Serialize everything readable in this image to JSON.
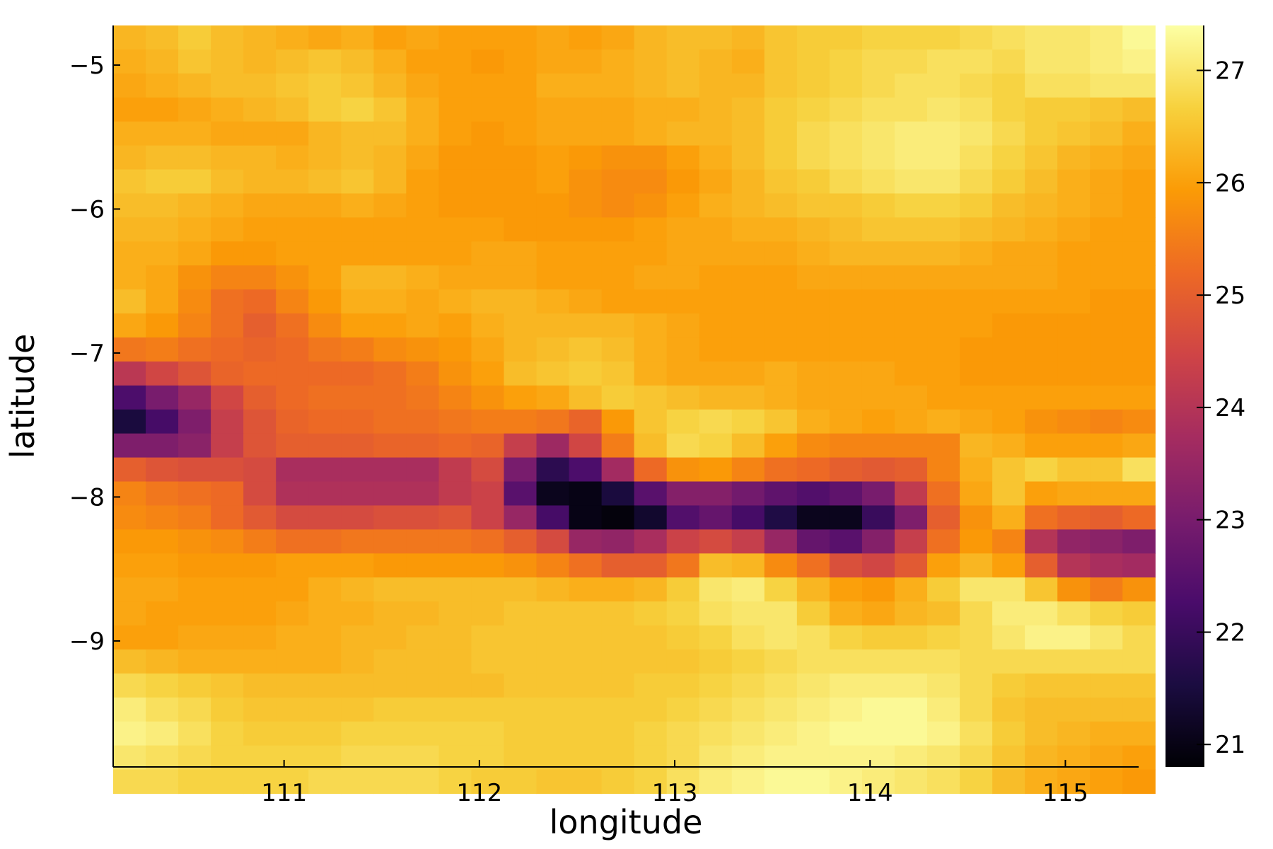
{
  "chart_data": {
    "type": "heatmap",
    "title": "",
    "xlabel": "longitude",
    "ylabel": "latitude",
    "grid": false,
    "legend": "colorbar-right",
    "colormap": "inferno",
    "colormap_stops": [
      "#000004",
      "#1b0c41",
      "#4a0c6b",
      "#781c6d",
      "#a52c60",
      "#cf4446",
      "#ed6925",
      "#fb9b06",
      "#f7d13d",
      "#fcffa4"
    ],
    "xlim": [
      110.125,
      115.375
    ],
    "ylim": [
      -9.875,
      -4.725
    ],
    "x_ticks": [
      111,
      112,
      113,
      114,
      115
    ],
    "x_tick_labels": [
      "111",
      "112",
      "113",
      "114",
      "115"
    ],
    "y_ticks": [
      -5,
      -6,
      -7,
      -8,
      -9
    ],
    "y_tick_labels": [
      "−5",
      "−6",
      "−7",
      "−8",
      "−9"
    ],
    "colorbar": {
      "range": [
        20.8,
        27.4
      ],
      "ticks": [
        21,
        22,
        23,
        24,
        25,
        26,
        27
      ],
      "tick_labels": [
        "21",
        "22",
        "23",
        "24",
        "25",
        "26",
        "27"
      ]
    },
    "x_start": 110.125,
    "x_step": 0.1667,
    "y_start": -4.725,
    "y_step": -0.1667,
    "rows": [
      [
        26.3,
        26.4,
        26.6,
        26.4,
        26.3,
        26.2,
        26.1,
        26.2,
        26.0,
        26.1,
        26.0,
        26.0,
        26.0,
        26.1,
        26.0,
        26.1,
        26.3,
        26.4,
        26.4,
        26.3,
        26.5,
        26.6,
        26.6,
        26.7,
        26.7,
        26.7,
        26.8,
        26.9,
        27.0,
        27.0,
        27.1,
        27.3
      ],
      [
        26.2,
        26.3,
        26.5,
        26.4,
        26.3,
        26.4,
        26.5,
        26.4,
        26.2,
        26.0,
        26.0,
        25.9,
        26.0,
        26.1,
        26.1,
        26.2,
        26.3,
        26.4,
        26.3,
        26.2,
        26.5,
        26.6,
        26.7,
        26.8,
        26.8,
        26.9,
        26.9,
        26.8,
        27.0,
        27.0,
        27.1,
        27.2
      ],
      [
        26.1,
        26.2,
        26.3,
        26.4,
        26.4,
        26.5,
        26.6,
        26.5,
        26.3,
        26.1,
        26.0,
        26.0,
        26.0,
        26.2,
        26.2,
        26.2,
        26.3,
        26.4,
        26.3,
        26.3,
        26.5,
        26.6,
        26.7,
        26.8,
        26.9,
        26.9,
        26.8,
        26.7,
        26.9,
        26.9,
        27.0,
        27.0
      ],
      [
        26.0,
        26.0,
        26.1,
        26.2,
        26.3,
        26.4,
        26.6,
        26.7,
        26.5,
        26.2,
        26.0,
        26.0,
        26.0,
        26.1,
        26.1,
        26.1,
        26.2,
        26.2,
        26.3,
        26.4,
        26.6,
        26.7,
        26.8,
        26.9,
        26.9,
        27.0,
        26.9,
        26.7,
        26.6,
        26.6,
        26.5,
        26.4
      ],
      [
        26.2,
        26.2,
        26.2,
        26.1,
        26.1,
        26.1,
        26.3,
        26.4,
        26.4,
        26.2,
        26.0,
        25.9,
        26.0,
        26.1,
        26.1,
        26.1,
        26.2,
        26.3,
        26.3,
        26.4,
        26.6,
        26.8,
        26.9,
        27.0,
        27.1,
        27.1,
        27.0,
        26.8,
        26.6,
        26.5,
        26.4,
        26.2
      ],
      [
        26.3,
        26.4,
        26.4,
        26.3,
        26.3,
        26.2,
        26.3,
        26.4,
        26.3,
        26.1,
        25.9,
        25.9,
        25.9,
        26.0,
        25.9,
        25.8,
        25.8,
        26.0,
        26.2,
        26.4,
        26.6,
        26.8,
        26.9,
        27.0,
        27.1,
        27.1,
        26.9,
        26.7,
        26.5,
        26.3,
        26.2,
        26.1
      ],
      [
        26.5,
        26.6,
        26.6,
        26.4,
        26.3,
        26.3,
        26.4,
        26.5,
        26.3,
        26.0,
        25.9,
        25.9,
        25.9,
        26.0,
        25.8,
        25.7,
        25.7,
        25.9,
        26.1,
        26.3,
        26.5,
        26.6,
        26.8,
        26.9,
        27.0,
        27.0,
        26.8,
        26.6,
        26.4,
        26.2,
        26.1,
        26.0
      ],
      [
        26.4,
        26.4,
        26.3,
        26.2,
        26.1,
        26.1,
        26.1,
        26.2,
        26.1,
        26.0,
        25.9,
        25.9,
        25.9,
        25.9,
        25.8,
        25.7,
        25.8,
        26.0,
        26.2,
        26.3,
        26.4,
        26.5,
        26.5,
        26.6,
        26.7,
        26.7,
        26.6,
        26.4,
        26.3,
        26.2,
        26.1,
        26.0
      ],
      [
        26.3,
        26.3,
        26.2,
        26.1,
        26.0,
        26.0,
        26.0,
        26.0,
        26.0,
        26.0,
        26.0,
        26.0,
        25.9,
        25.9,
        25.9,
        25.9,
        26.0,
        26.1,
        26.1,
        26.2,
        26.2,
        26.3,
        26.4,
        26.5,
        26.5,
        26.5,
        26.4,
        26.3,
        26.2,
        26.1,
        26.0,
        26.0
      ],
      [
        26.2,
        26.2,
        26.1,
        25.9,
        25.9,
        26.0,
        26.0,
        26.0,
        26.0,
        26.0,
        26.0,
        26.1,
        26.1,
        26.0,
        26.0,
        26.0,
        26.0,
        26.1,
        26.1,
        26.1,
        26.1,
        26.2,
        26.3,
        26.3,
        26.3,
        26.3,
        26.2,
        26.1,
        26.1,
        26.0,
        26.0,
        26.0
      ],
      [
        26.2,
        26.1,
        25.8,
        25.6,
        25.6,
        25.8,
        26.0,
        26.3,
        26.3,
        26.2,
        26.1,
        26.1,
        26.1,
        26.0,
        26.0,
        26.0,
        26.1,
        26.1,
        26.0,
        26.0,
        26.0,
        26.1,
        26.1,
        26.1,
        26.1,
        26.1,
        26.1,
        26.1,
        26.1,
        26.0,
        26.0,
        26.0
      ],
      [
        26.4,
        26.1,
        25.7,
        25.3,
        25.2,
        25.6,
        25.9,
        26.2,
        26.2,
        26.1,
        26.2,
        26.3,
        26.3,
        26.2,
        26.1,
        26.0,
        26.0,
        26.0,
        26.0,
        26.0,
        26.0,
        26.0,
        26.0,
        26.0,
        26.0,
        26.0,
        26.0,
        26.0,
        26.0,
        26.0,
        25.9,
        25.9
      ],
      [
        26.1,
        25.9,
        25.6,
        25.3,
        25.0,
        25.3,
        25.7,
        26.0,
        26.0,
        26.1,
        26.0,
        26.2,
        26.3,
        26.3,
        26.3,
        26.3,
        26.2,
        26.1,
        26.0,
        26.0,
        26.0,
        26.0,
        26.0,
        26.0,
        26.0,
        26.0,
        26.0,
        25.9,
        25.9,
        25.9,
        25.9,
        25.9
      ],
      [
        25.4,
        25.5,
        25.3,
        25.2,
        25.1,
        25.2,
        25.4,
        25.5,
        25.7,
        25.8,
        25.9,
        26.1,
        26.3,
        26.4,
        26.5,
        26.4,
        26.2,
        26.1,
        26.0,
        26.0,
        26.0,
        26.0,
        26.0,
        26.0,
        26.0,
        26.0,
        25.9,
        25.9,
        25.9,
        25.9,
        25.9,
        25.9
      ],
      [
        24.1,
        24.5,
        24.8,
        25.1,
        25.2,
        25.2,
        25.2,
        25.2,
        25.3,
        25.5,
        25.8,
        26.0,
        26.4,
        26.5,
        26.6,
        26.5,
        26.2,
        26.1,
        26.1,
        26.1,
        26.2,
        26.1,
        26.1,
        26.1,
        26.0,
        26.0,
        25.9,
        25.9,
        25.9,
        25.9,
        25.9,
        25.9
      ],
      [
        22.3,
        23.0,
        23.5,
        24.5,
        25.0,
        25.2,
        25.3,
        25.3,
        25.3,
        25.4,
        25.6,
        25.8,
        26.0,
        26.1,
        26.4,
        26.6,
        26.5,
        26.4,
        26.3,
        26.3,
        26.2,
        26.1,
        26.1,
        26.1,
        26.1,
        26.0,
        26.0,
        26.0,
        26.0,
        26.0,
        26.0,
        26.0
      ],
      [
        21.5,
        22.2,
        23.1,
        24.3,
        24.8,
        25.1,
        25.2,
        25.2,
        25.3,
        25.3,
        25.4,
        25.5,
        25.5,
        25.4,
        25.1,
        25.9,
        26.5,
        26.7,
        26.8,
        26.7,
        26.5,
        26.2,
        26.1,
        26.0,
        26.1,
        26.2,
        26.1,
        26.0,
        25.8,
        25.7,
        25.6,
        25.7
      ],
      [
        23.1,
        23.1,
        23.3,
        24.3,
        24.8,
        25.0,
        25.0,
        25.0,
        25.1,
        25.1,
        25.2,
        25.1,
        24.3,
        23.6,
        24.5,
        25.5,
        26.4,
        26.8,
        26.7,
        26.4,
        26.0,
        25.7,
        25.6,
        25.6,
        25.6,
        25.6,
        26.3,
        26.2,
        26.0,
        26.0,
        26.0,
        26.1
      ],
      [
        25.0,
        24.8,
        24.7,
        24.7,
        24.6,
        23.8,
        23.8,
        23.8,
        23.8,
        23.8,
        24.2,
        24.6,
        23.0,
        21.8,
        22.3,
        23.7,
        25.2,
        25.8,
        25.9,
        25.6,
        25.3,
        25.2,
        25.0,
        24.9,
        25.0,
        25.6,
        26.2,
        26.5,
        26.7,
        26.5,
        26.5,
        26.9
      ],
      [
        25.6,
        25.4,
        25.3,
        25.2,
        24.6,
        23.9,
        23.9,
        23.9,
        23.9,
        23.9,
        24.2,
        24.4,
        22.5,
        21.1,
        21.0,
        21.5,
        22.5,
        23.2,
        23.2,
        22.9,
        22.6,
        22.4,
        22.6,
        23.0,
        24.2,
        25.3,
        26.1,
        26.5,
        26.0,
        26.1,
        26.1,
        26.1
      ],
      [
        25.7,
        25.6,
        25.5,
        25.2,
        24.9,
        24.6,
        24.6,
        24.6,
        24.7,
        24.7,
        24.8,
        24.4,
        23.5,
        22.2,
        21.0,
        20.9,
        21.3,
        22.4,
        22.7,
        22.2,
        21.6,
        21.1,
        21.1,
        22.0,
        23.1,
        25.0,
        25.8,
        26.2,
        25.3,
        25.1,
        25.0,
        25.2
      ],
      [
        25.9,
        25.9,
        25.8,
        25.7,
        25.5,
        25.3,
        25.3,
        25.4,
        25.4,
        25.4,
        25.4,
        25.3,
        25.0,
        24.6,
        23.5,
        23.4,
        23.8,
        24.4,
        24.6,
        24.3,
        23.5,
        22.7,
        22.5,
        23.2,
        24.3,
        25.3,
        25.9,
        25.6,
        24.0,
        23.4,
        23.3,
        23.1
      ],
      [
        26.0,
        26.0,
        25.9,
        25.9,
        25.9,
        26.0,
        26.0,
        26.0,
        25.9,
        25.9,
        25.9,
        25.9,
        25.8,
        25.6,
        25.3,
        25.0,
        25.0,
        25.4,
        26.4,
        26.3,
        25.7,
        25.3,
        24.7,
        24.5,
        24.9,
        26.0,
        26.3,
        26.0,
        25.0,
        24.0,
        23.8,
        23.7
      ],
      [
        26.1,
        26.1,
        26.0,
        26.0,
        26.0,
        26.0,
        26.2,
        26.3,
        26.4,
        26.4,
        26.4,
        26.4,
        26.4,
        26.3,
        26.2,
        26.2,
        26.3,
        26.6,
        27.0,
        27.1,
        26.7,
        26.3,
        26.0,
        25.9,
        26.2,
        26.6,
        27.0,
        27.0,
        26.5,
        25.8,
        25.5,
        25.8
      ],
      [
        26.1,
        26.0,
        26.0,
        26.0,
        26.0,
        26.1,
        26.2,
        26.2,
        26.3,
        26.3,
        26.4,
        26.4,
        26.5,
        26.5,
        26.5,
        26.5,
        26.6,
        26.7,
        26.9,
        27.0,
        27.0,
        26.6,
        26.2,
        26.1,
        26.3,
        26.4,
        26.8,
        27.1,
        27.1,
        26.9,
        26.7,
        26.6
      ],
      [
        26.0,
        26.0,
        26.1,
        26.1,
        26.1,
        26.2,
        26.2,
        26.3,
        26.3,
        26.4,
        26.4,
        26.5,
        26.5,
        26.5,
        26.5,
        26.5,
        26.5,
        26.6,
        26.7,
        26.9,
        27.0,
        26.9,
        26.7,
        26.6,
        26.6,
        26.7,
        26.8,
        27.0,
        27.2,
        27.2,
        27.0,
        26.8
      ],
      [
        26.4,
        26.3,
        26.2,
        26.2,
        26.2,
        26.2,
        26.2,
        26.3,
        26.4,
        26.4,
        26.4,
        26.5,
        26.5,
        26.5,
        26.5,
        26.5,
        26.5,
        26.5,
        26.6,
        26.7,
        26.8,
        26.9,
        26.9,
        26.9,
        26.9,
        26.9,
        26.8,
        26.8,
        26.8,
        26.8,
        26.8,
        26.8
      ],
      [
        26.8,
        26.7,
        26.6,
        26.5,
        26.4,
        26.4,
        26.4,
        26.4,
        26.4,
        26.4,
        26.4,
        26.4,
        26.5,
        26.5,
        26.5,
        26.5,
        26.6,
        26.6,
        26.7,
        26.8,
        26.9,
        27.0,
        27.1,
        27.1,
        27.1,
        27.0,
        26.8,
        26.6,
        26.5,
        26.5,
        26.5,
        26.5
      ],
      [
        27.1,
        26.9,
        26.8,
        26.6,
        26.5,
        26.5,
        26.5,
        26.5,
        26.6,
        26.6,
        26.6,
        26.6,
        26.6,
        26.6,
        26.6,
        26.6,
        26.6,
        26.7,
        26.8,
        26.9,
        27.0,
        27.1,
        27.2,
        27.3,
        27.3,
        27.1,
        26.8,
        26.5,
        26.4,
        26.4,
        26.4,
        26.4
      ],
      [
        27.2,
        27.1,
        26.9,
        26.7,
        26.6,
        26.6,
        26.6,
        26.7,
        26.7,
        26.7,
        26.7,
        26.7,
        26.6,
        26.6,
        26.6,
        26.6,
        26.7,
        26.8,
        26.9,
        27.0,
        27.1,
        27.2,
        27.3,
        27.3,
        27.3,
        27.2,
        26.9,
        26.6,
        26.4,
        26.3,
        26.2,
        26.2
      ],
      [
        27.0,
        26.9,
        26.8,
        26.7,
        26.7,
        26.7,
        26.7,
        26.8,
        26.8,
        26.8,
        26.7,
        26.7,
        26.6,
        26.6,
        26.6,
        26.6,
        26.7,
        26.8,
        27.0,
        27.1,
        27.2,
        27.2,
        27.2,
        27.2,
        27.1,
        27.0,
        26.8,
        26.5,
        26.3,
        26.2,
        26.1,
        26.0
      ],
      [
        26.8,
        26.8,
        26.7,
        26.7,
        26.7,
        26.7,
        26.8,
        26.8,
        26.8,
        26.8,
        26.7,
        26.6,
        26.6,
        26.5,
        26.5,
        26.6,
        26.7,
        26.9,
        27.1,
        27.2,
        27.3,
        27.3,
        27.2,
        27.1,
        27.0,
        26.9,
        26.7,
        26.4,
        26.2,
        26.1,
        26.0,
        25.9
      ]
    ]
  }
}
